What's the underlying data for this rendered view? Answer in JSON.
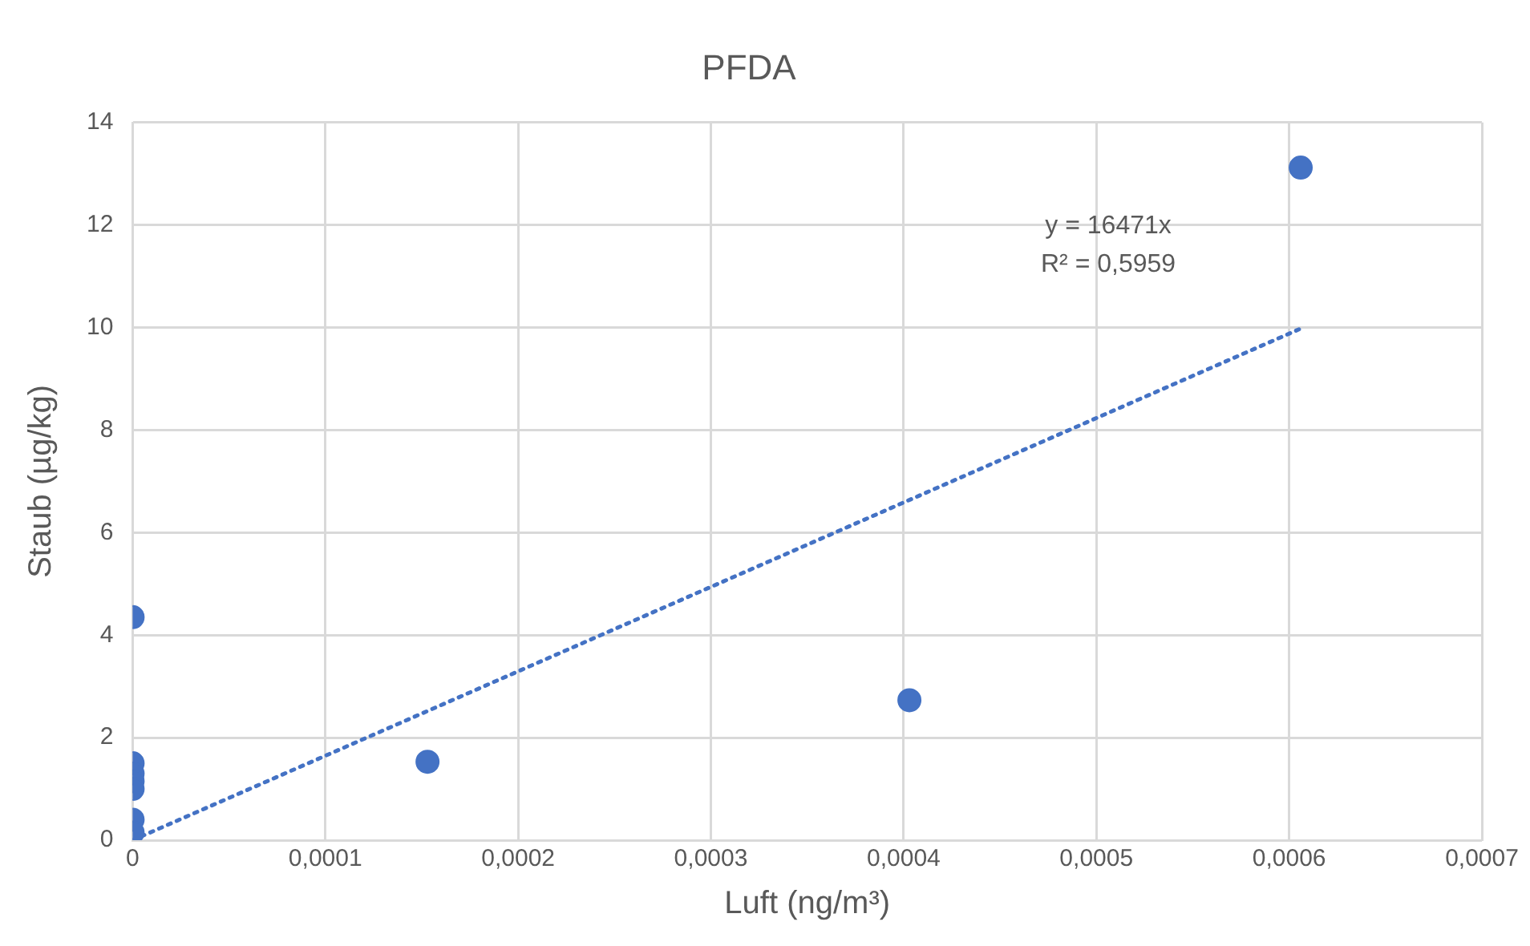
{
  "chart_data": {
    "type": "scatter",
    "title": "PFDA",
    "xlabel": "Luft (ng/m³)",
    "ylabel": "Staub (µg/kg)",
    "series": [
      {
        "color": "#4472c4",
        "x": [
          0,
          0,
          0,
          0,
          0,
          0,
          0,
          0.000153,
          0.000403,
          0.000606
        ],
        "values": [
          4.35,
          1.5,
          1.3,
          1.15,
          1.0,
          0.4,
          0.15,
          1.53,
          2.73,
          13.12
        ]
      },
      {
        "type": "line",
        "color": "#4472c4",
        "line_style": "dotted",
        "marker": "none",
        "x": [
          0,
          0.000606
        ],
        "values": [
          0,
          9.98
        ]
      }
    ],
    "xlim": [
      0,
      0.0007
    ],
    "xticks": [
      0,
      {
        "value": 0.0001,
        "label": "0,0001"
      },
      {
        "value": 0.0002,
        "label": "0,0002"
      },
      {
        "value": 0.0003,
        "label": "0,0003"
      },
      {
        "value": 0.0004,
        "label": "0,0004"
      },
      {
        "value": 0.0005,
        "label": "0,0005"
      },
      {
        "value": 0.0006,
        "label": "0,0006"
      },
      {
        "value": 0.0007,
        "label": "0,0007"
      }
    ],
    "ylim": [
      0,
      14
    ],
    "yticks": [
      0,
      2,
      4,
      6,
      8,
      10,
      12,
      14
    ],
    "grid": true,
    "legend": false,
    "marker": "circle",
    "annotations": [
      "y = 16471x",
      "R² = 0,5959"
    ]
  }
}
